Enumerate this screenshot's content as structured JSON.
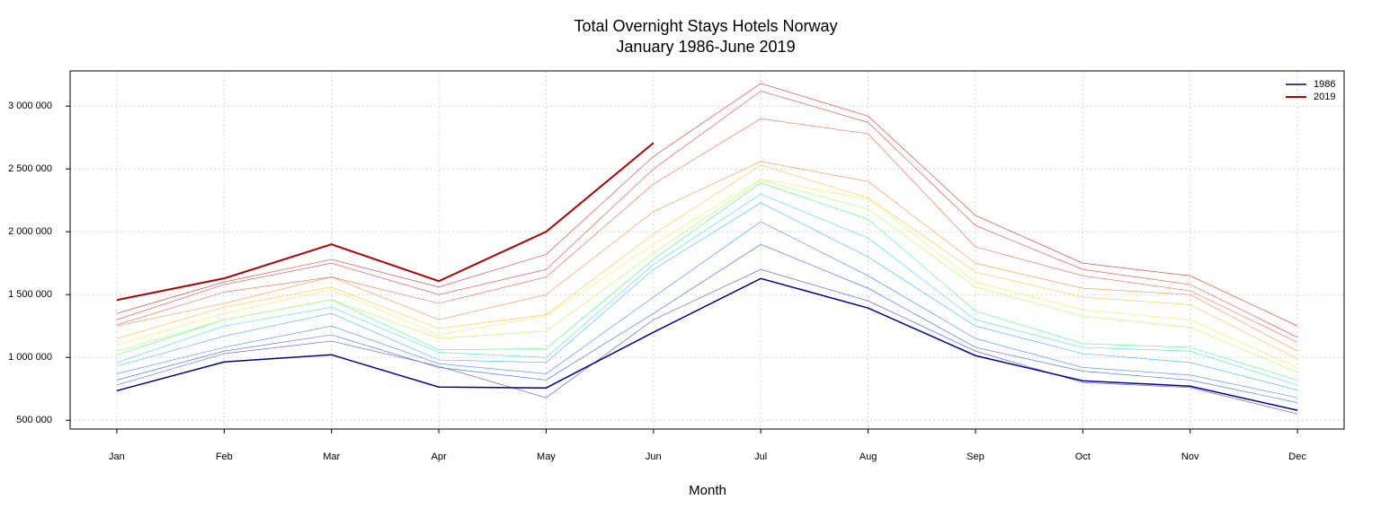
{
  "chart_data": {
    "type": "line",
    "title": "Total Overnight Stays Hotels Norway",
    "subtitle": "January 1986-June 2019",
    "x_label": "Month",
    "x": [
      "Jan",
      "Feb",
      "Mar",
      "Apr",
      "May",
      "Jun",
      "Jul",
      "Aug",
      "Sep",
      "Oct",
      "Nov",
      "Dec"
    ],
    "ylim": [
      430000,
      3280000
    ],
    "yticks": [
      {
        "value": 500000,
        "label": "500 000"
      },
      {
        "value": 1000000,
        "label": "1 000 000"
      },
      {
        "value": 1500000,
        "label": "1 500 000"
      },
      {
        "value": 2000000,
        "label": "2 000 000"
      },
      {
        "value": 2500000,
        "label": "2 500 000"
      },
      {
        "value": 3000000,
        "label": "3 000 000"
      }
    ],
    "grid": true,
    "legend": "topright",
    "series": [
      {
        "name": "1986",
        "color": "#00008b",
        "width": 1.5,
        "values": [
          735000,
          964000,
          1021000,
          764000,
          757000,
          1200000,
          1628000,
          1393000,
          1014000,
          814000,
          771000,
          579000
        ]
      },
      {
        "color": "#5050e0",
        "width": 0.6,
        "values": [
          780000,
          1030000,
          1130000,
          930000,
          680000,
          1300000,
          1700000,
          1450000,
          1050000,
          800000,
          760000,
          550000
        ]
      },
      {
        "color": "#4060ff",
        "width": 0.6,
        "values": [
          820000,
          1050000,
          1180000,
          920000,
          820000,
          1350000,
          1900000,
          1550000,
          1080000,
          890000,
          820000,
          640000
        ]
      },
      {
        "color": "#3a8cff",
        "width": 0.6,
        "values": [
          870000,
          1080000,
          1250000,
          950000,
          870000,
          1480000,
          2080000,
          1650000,
          1150000,
          920000,
          860000,
          680000
        ]
      },
      {
        "color": "#3ab4ff",
        "width": 0.6,
        "values": [
          930000,
          1170000,
          1350000,
          980000,
          960000,
          1700000,
          2230000,
          1800000,
          1250000,
          1030000,
          960000,
          740000
        ]
      },
      {
        "color": "#40e0e0",
        "width": 0.6,
        "values": [
          960000,
          1250000,
          1400000,
          1040000,
          1000000,
          1740000,
          2300000,
          1950000,
          1300000,
          1080000,
          1050000,
          780000
        ]
      },
      {
        "color": "#40ff80",
        "width": 0.6,
        "values": [
          1020000,
          1300000,
          1460000,
          1060000,
          1070000,
          1780000,
          2390000,
          2100000,
          1370000,
          1110000,
          1080000,
          820000
        ]
      },
      {
        "color": "#b0ff50",
        "width": 0.6,
        "values": [
          1050000,
          1300000,
          1460000,
          1150000,
          1210000,
          1830000,
          2410000,
          2180000,
          1560000,
          1330000,
          1240000,
          880000
        ]
      },
      {
        "color": "#f0f040",
        "width": 0.6,
        "values": [
          1100000,
          1350000,
          1540000,
          1180000,
          1330000,
          1900000,
          2420000,
          2260000,
          1600000,
          1380000,
          1300000,
          920000
        ]
      },
      {
        "color": "#ffc040",
        "width": 0.6,
        "values": [
          1150000,
          1400000,
          1560000,
          1230000,
          1340000,
          1980000,
          2530000,
          2270000,
          1680000,
          1480000,
          1420000,
          990000
        ]
      },
      {
        "color": "#ff9040",
        "width": 0.6,
        "values": [
          1250000,
          1430000,
          1640000,
          1300000,
          1500000,
          2160000,
          2560000,
          2400000,
          1750000,
          1550000,
          1500000,
          1050000
        ]
      },
      {
        "color": "#ff6040",
        "width": 0.6,
        "values": [
          1260000,
          1520000,
          1640000,
          1430000,
          1640000,
          2380000,
          2900000,
          2780000,
          1880000,
          1650000,
          1530000,
          1120000
        ]
      },
      {
        "color": "#f04040",
        "width": 0.6,
        "values": [
          1300000,
          1580000,
          1750000,
          1500000,
          1700000,
          2500000,
          3120000,
          2870000,
          2050000,
          1700000,
          1580000,
          1160000
        ]
      },
      {
        "color": "#e03030",
        "width": 0.6,
        "values": [
          1350000,
          1600000,
          1780000,
          1560000,
          1820000,
          2600000,
          3180000,
          2920000,
          2130000,
          1750000,
          1650000,
          1250000
        ]
      },
      {
        "name": "2019",
        "color": "#b20000",
        "width": 2,
        "values": [
          1457000,
          1629000,
          1900000,
          1607000,
          2000000,
          2707000,
          null,
          null,
          null,
          null,
          null,
          null
        ]
      }
    ]
  }
}
